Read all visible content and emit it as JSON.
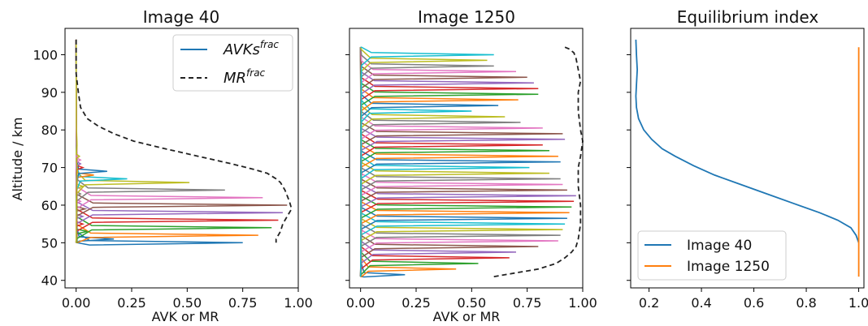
{
  "chart_data": [
    {
      "type": "line",
      "title": "Image 40",
      "xlabel": "AVK or MR",
      "ylabel": "Altitude / km",
      "xlim": [
        -0.05,
        1.0
      ],
      "ylim": [
        38,
        107
      ],
      "xticks": [
        "0.00",
        "0.25",
        "0.50",
        "0.75",
        "1.00"
      ],
      "xtick_values": [
        0,
        0.25,
        0.5,
        0.75,
        1.0
      ],
      "yticks": [
        "40",
        "50",
        "60",
        "70",
        "80",
        "90",
        "100"
      ],
      "ytick_values": [
        40,
        50,
        60,
        70,
        80,
        90,
        100
      ],
      "legend": {
        "position": "top-right",
        "entries": [
          {
            "text": "AVKs",
            "sup": "frac",
            "style": "solid",
            "color": "#1f77b4"
          },
          {
            "text": "MR",
            "sup": "frac",
            "style": "dashed",
            "color": "#222222"
          }
        ]
      },
      "series": [
        {
          "style": "avk_peaks",
          "altitude_range": [
            50,
            104
          ],
          "peaks": [
            {
              "altitude": 50,
              "value": 0.75,
              "color": "#1f77b4"
            },
            {
              "altitude": 51,
              "value": 0.17,
              "color": "#1f77b4"
            },
            {
              "altitude": 52,
              "value": 0.82,
              "color": "#ff7f0e"
            },
            {
              "altitude": 53,
              "value": 0.05,
              "color": "#2ca02c"
            },
            {
              "altitude": 54,
              "value": 0.88,
              "color": "#2ca02c"
            },
            {
              "altitude": 55,
              "value": 0.03,
              "color": "#d62728"
            },
            {
              "altitude": 56,
              "value": 0.91,
              "color": "#d62728"
            },
            {
              "altitude": 57,
              "value": 0.03,
              "color": "#9467bd"
            },
            {
              "altitude": 58,
              "value": 0.93,
              "color": "#9467bd"
            },
            {
              "altitude": 59,
              "value": 0.04,
              "color": "#8c564b"
            },
            {
              "altitude": 60,
              "value": 0.95,
              "color": "#8c564b"
            },
            {
              "altitude": 61,
              "value": 0.02,
              "color": "#e377c2"
            },
            {
              "altitude": 62,
              "value": 0.84,
              "color": "#e377c2"
            },
            {
              "altitude": 63,
              "value": 0.02,
              "color": "#7f7f7f"
            },
            {
              "altitude": 64,
              "value": 0.67,
              "color": "#7f7f7f"
            },
            {
              "altitude": 65,
              "value": 0.03,
              "color": "#bcbd22"
            },
            {
              "altitude": 66,
              "value": 0.51,
              "color": "#bcbd22"
            },
            {
              "altitude": 67,
              "value": 0.23,
              "color": "#17becf"
            },
            {
              "altitude": 68,
              "value": 0.08,
              "color": "#ff7f0e"
            },
            {
              "altitude": 69,
              "value": 0.14,
              "color": "#1f77b4"
            },
            {
              "altitude": 70,
              "value": 0.03,
              "color": "#d62728"
            },
            {
              "altitude": 71,
              "value": 0.02,
              "color": "#9467bd"
            },
            {
              "altitude": 72,
              "value": 0.02,
              "color": "#e377c2"
            },
            {
              "altitude": 73,
              "value": 0.015,
              "color": "#bcbd22"
            }
          ]
        },
        {
          "name": "MR",
          "style": "dashed",
          "color": "#222222",
          "x": [
            0.0,
            0.0,
            0.01,
            0.02,
            0.05,
            0.1,
            0.17,
            0.26,
            0.4,
            0.55,
            0.7,
            0.8,
            0.86,
            0.9,
            0.92,
            0.94,
            0.96,
            0.97,
            0.95,
            0.93,
            0.92,
            0.9,
            0.9
          ],
          "y": [
            104,
            95,
            90,
            86,
            83,
            81,
            79,
            77,
            75,
            73,
            71,
            69.5,
            68.5,
            67,
            66,
            64,
            61,
            59,
            57,
            55,
            53,
            51,
            50
          ]
        }
      ]
    },
    {
      "type": "line",
      "title": "Image 1250",
      "xlabel": "AVK or MR",
      "xlim": [
        -0.05,
        1.0
      ],
      "ylim": [
        38,
        107
      ],
      "xticks": [
        "0.00",
        "0.25",
        "0.50",
        "0.75",
        "1.00"
      ],
      "xtick_values": [
        0,
        0.25,
        0.5,
        0.75,
        1.0
      ],
      "ytick_values": [
        40,
        50,
        60,
        70,
        80,
        90,
        100
      ],
      "series": [
        {
          "style": "avk_peaks",
          "altitude_range": [
            41,
            102
          ],
          "peaks": [
            {
              "altitude": 41.5,
              "value": 0.2,
              "color": "#1f77b4"
            },
            {
              "altitude": 43,
              "value": 0.43,
              "color": "#ff7f0e"
            },
            {
              "altitude": 44.5,
              "value": 0.53,
              "color": "#2ca02c"
            },
            {
              "altitude": 46,
              "value": 0.67,
              "color": "#d62728"
            },
            {
              "altitude": 47.5,
              "value": 0.7,
              "color": "#9467bd"
            },
            {
              "altitude": 49,
              "value": 0.8,
              "color": "#8c564b"
            },
            {
              "altitude": 50.5,
              "value": 0.89,
              "color": "#e377c2"
            },
            {
              "altitude": 52,
              "value": 0.9,
              "color": "#7f7f7f"
            },
            {
              "altitude": 53.5,
              "value": 0.91,
              "color": "#bcbd22"
            },
            {
              "altitude": 55,
              "value": 0.92,
              "color": "#17becf"
            },
            {
              "altitude": 56.5,
              "value": 0.93,
              "color": "#1f77b4"
            },
            {
              "altitude": 58,
              "value": 0.94,
              "color": "#ff7f0e"
            },
            {
              "altitude": 59.5,
              "value": 0.95,
              "color": "#2ca02c"
            },
            {
              "altitude": 61,
              "value": 0.96,
              "color": "#d62728"
            },
            {
              "altitude": 62.5,
              "value": 0.97,
              "color": "#9467bd"
            },
            {
              "altitude": 64,
              "value": 0.93,
              "color": "#8c564b"
            },
            {
              "altitude": 65.5,
              "value": 0.91,
              "color": "#e377c2"
            },
            {
              "altitude": 67,
              "value": 0.9,
              "color": "#7f7f7f"
            },
            {
              "altitude": 68.5,
              "value": 0.85,
              "color": "#bcbd22"
            },
            {
              "altitude": 70,
              "value": 0.76,
              "color": "#17becf"
            },
            {
              "altitude": 71.5,
              "value": 0.9,
              "color": "#1f77b4"
            },
            {
              "altitude": 73,
              "value": 0.89,
              "color": "#ff7f0e"
            },
            {
              "altitude": 74.5,
              "value": 0.85,
              "color": "#2ca02c"
            },
            {
              "altitude": 76,
              "value": 0.82,
              "color": "#d62728"
            },
            {
              "altitude": 77.5,
              "value": 0.92,
              "color": "#9467bd"
            },
            {
              "altitude": 79,
              "value": 0.91,
              "color": "#8c564b"
            },
            {
              "altitude": 80.5,
              "value": 0.82,
              "color": "#e377c2"
            },
            {
              "altitude": 82,
              "value": 0.72,
              "color": "#7f7f7f"
            },
            {
              "altitude": 83.5,
              "value": 0.65,
              "color": "#bcbd22"
            },
            {
              "altitude": 85,
              "value": 0.5,
              "color": "#17becf"
            },
            {
              "altitude": 86.5,
              "value": 0.62,
              "color": "#1f77b4"
            },
            {
              "altitude": 88,
              "value": 0.71,
              "color": "#ff7f0e"
            },
            {
              "altitude": 89.5,
              "value": 0.8,
              "color": "#2ca02c"
            },
            {
              "altitude": 91,
              "value": 0.8,
              "color": "#d62728"
            },
            {
              "altitude": 92.5,
              "value": 0.78,
              "color": "#9467bd"
            },
            {
              "altitude": 94,
              "value": 0.75,
              "color": "#8c564b"
            },
            {
              "altitude": 95.5,
              "value": 0.7,
              "color": "#e377c2"
            },
            {
              "altitude": 97,
              "value": 0.6,
              "color": "#7f7f7f"
            },
            {
              "altitude": 98.5,
              "value": 0.57,
              "color": "#bcbd22"
            },
            {
              "altitude": 100,
              "value": 0.6,
              "color": "#17becf"
            }
          ]
        },
        {
          "name": "MR",
          "style": "dashed",
          "color": "#222222",
          "x": [
            0.6,
            0.7,
            0.8,
            0.88,
            0.92,
            0.95,
            0.97,
            0.98,
            0.99,
            0.99,
            0.98,
            0.98,
            0.99,
            1.0,
            0.99,
            0.98,
            0.98,
            0.99,
            0.98,
            0.97,
            0.96,
            0.94,
            0.92
          ],
          "y": [
            41,
            42,
            43,
            44.5,
            46,
            47.5,
            49,
            51,
            55,
            60,
            65,
            70,
            73,
            77,
            80,
            85,
            90,
            93,
            96,
            99,
            100.5,
            101.5,
            102
          ]
        }
      ]
    },
    {
      "type": "line",
      "title": "Equilibrium index",
      "xlim": [
        0.13,
        1.02
      ],
      "ylim": [
        38,
        107
      ],
      "xticks": [
        "0.2",
        "0.4",
        "0.6",
        "0.8",
        "1.0"
      ],
      "xtick_values": [
        0.2,
        0.4,
        0.6,
        0.8,
        1.0
      ],
      "ytick_values": [
        40,
        50,
        60,
        70,
        80,
        90,
        100
      ],
      "legend": {
        "position": "bottom-left",
        "entries": [
          {
            "text": "Image 40",
            "style": "solid",
            "color": "#1f77b4"
          },
          {
            "text": "Image 1250",
            "style": "solid",
            "color": "#ff7f0e"
          }
        ]
      },
      "series": [
        {
          "name": "Image 40",
          "style": "solid",
          "color": "#1f77b4",
          "x": [
            0.15,
            0.152,
            0.155,
            0.152,
            0.15,
            0.152,
            0.16,
            0.18,
            0.21,
            0.25,
            0.3,
            0.37,
            0.45,
            0.55,
            0.65,
            0.75,
            0.85,
            0.92,
            0.97,
            0.99,
            1.0
          ],
          "y": [
            104,
            100,
            96,
            92,
            89,
            86,
            83,
            80,
            77.5,
            75,
            73,
            70.5,
            68,
            65.5,
            63,
            60.5,
            58,
            56,
            54,
            52,
            50
          ]
        },
        {
          "name": "Image 1250",
          "style": "solid",
          "color": "#ff7f0e",
          "x": [
            1.0,
            1.0
          ],
          "y": [
            41,
            102
          ]
        }
      ]
    }
  ]
}
